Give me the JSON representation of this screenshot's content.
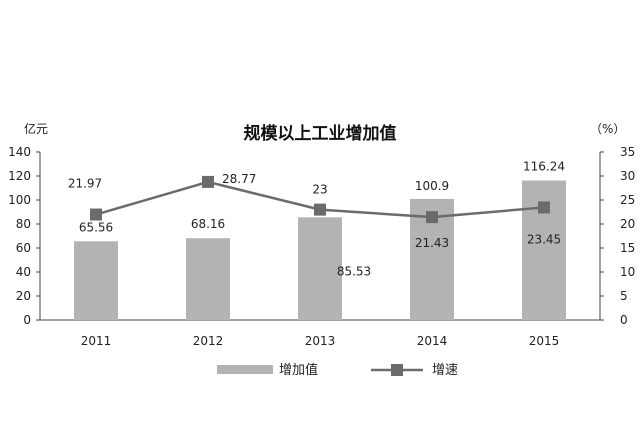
{
  "chart_data": {
    "type": "bar",
    "title": "规模以上工业增加值",
    "categories": [
      "2011",
      "2012",
      "2013",
      "2014",
      "2015"
    ],
    "series": [
      {
        "name": "增加值",
        "type": "bar",
        "axis": "left",
        "values": [
          65.56,
          68.16,
          85.53,
          100.9,
          116.24
        ],
        "labels": [
          "65.56",
          "68.16",
          "85.53",
          "100.9",
          "116.24"
        ],
        "color": "#b3b3b3"
      },
      {
        "name": "增速",
        "type": "line",
        "axis": "right",
        "values": [
          21.97,
          28.77,
          23,
          21.43,
          23.45
        ],
        "labels": [
          "21.97",
          "28.77",
          "23",
          "21.43",
          "23.45"
        ],
        "color": "#6b6b6b"
      }
    ],
    "y_left": {
      "unit": "亿元",
      "range": [
        0,
        140
      ],
      "ticks": [
        "0",
        "20",
        "40",
        "60",
        "80",
        "100",
        "120",
        "140"
      ]
    },
    "y_right": {
      "unit": "（%）",
      "range": [
        0,
        35
      ],
      "ticks": [
        "0",
        "5",
        "10",
        "15",
        "20",
        "25",
        "30",
        "35"
      ]
    },
    "grid": false,
    "legend_position": "bottom"
  }
}
